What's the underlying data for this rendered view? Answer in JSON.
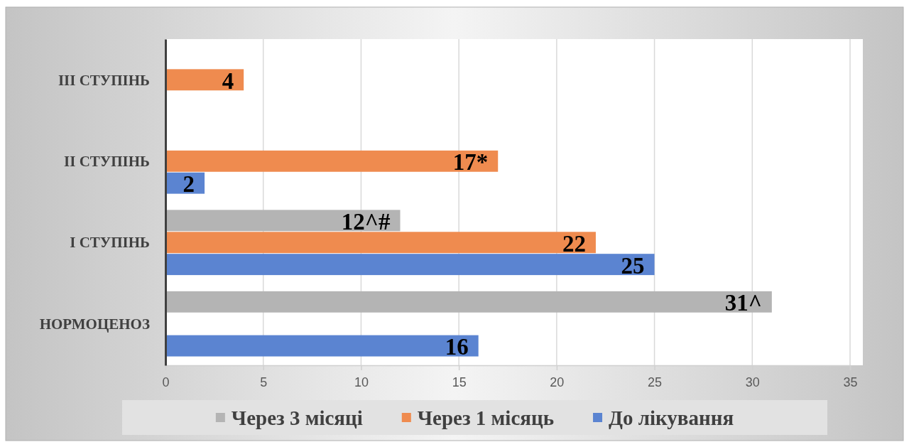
{
  "chart_data": {
    "type": "bar",
    "orientation": "horizontal",
    "categories": [
      "III СТУПІНЬ",
      "II СТУПІНЬ",
      "I СТУПІНЬ",
      "НОРМОЦЕНОЗ"
    ],
    "series": [
      {
        "name": "Через 3 місяці",
        "color": "#b4b4b4",
        "values": [
          null,
          null,
          12,
          31
        ],
        "value_labels": [
          null,
          null,
          "12^#",
          "31^"
        ]
      },
      {
        "name": "Через 1 місяць",
        "color": "#ef8b4f",
        "values": [
          4,
          17,
          22,
          null
        ],
        "value_labels": [
          "4",
          "17*",
          "22",
          null
        ]
      },
      {
        "name": "До лікування",
        "color": "#5b84d1",
        "values": [
          null,
          2,
          25,
          16
        ],
        "value_labels": [
          null,
          "2",
          "25",
          "16"
        ]
      }
    ],
    "xlim": [
      0,
      35
    ],
    "xticks": [
      0,
      5,
      10,
      15,
      20,
      25,
      30,
      35
    ],
    "grid": "x",
    "legend": "bottom"
  }
}
